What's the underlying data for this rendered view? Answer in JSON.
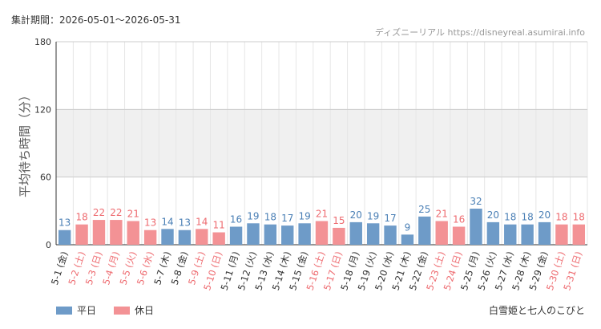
{
  "header": {
    "period_label": "集計期間：2026-05-01〜2026-05-31",
    "credit": "ディズニーリアル https://disneyreal.asumirai.info"
  },
  "footer": {
    "attraction_name": "白雪姫と七人のこびと"
  },
  "colors": {
    "weekday": "#6e9bc8",
    "holiday": "#f39295",
    "weekday_text": "#4a7fb5",
    "holiday_text": "#ee6b70",
    "band": "#f0f0f0",
    "grid": "#e6e6e6"
  },
  "chart_data": {
    "type": "bar",
    "ylabel": "平均待ち時間（分）",
    "ylim": [
      0,
      180
    ],
    "yticks": [
      "0",
      "60",
      "120",
      "180"
    ],
    "band": [
      60,
      120
    ],
    "grid": true,
    "legend_position": "bottom-left",
    "legend": [
      {
        "label": "平日",
        "key": "weekday"
      },
      {
        "label": "休日",
        "key": "holiday"
      }
    ],
    "categories": [
      "5-1 (金)",
      "5-2 (土)",
      "5-3 (日)",
      "5-4 (月)",
      "5-5 (火)",
      "5-6 (水)",
      "5-7 (木)",
      "5-8 (金)",
      "5-9 (土)",
      "5-10 (日)",
      "5-11 (月)",
      "5-12 (火)",
      "5-13 (水)",
      "5-14 (木)",
      "5-15 (金)",
      "5-16 (土)",
      "5-17 (日)",
      "5-18 (月)",
      "5-19 (火)",
      "5-20 (水)",
      "5-21 (木)",
      "5-22 (金)",
      "5-23 (土)",
      "5-24 (日)",
      "5-25 (月)",
      "5-26 (火)",
      "5-27 (水)",
      "5-28 (木)",
      "5-29 (金)",
      "5-30 (土)",
      "5-31 (日)"
    ],
    "values": [
      13,
      18,
      22,
      22,
      21,
      13,
      14,
      13,
      14,
      11,
      16,
      19,
      18,
      17,
      19,
      21,
      15,
      20,
      19,
      17,
      9,
      25,
      21,
      16,
      32,
      20,
      18,
      18,
      20,
      18,
      18
    ],
    "day_types": [
      "weekday",
      "holiday",
      "holiday",
      "holiday",
      "holiday",
      "holiday",
      "weekday",
      "weekday",
      "holiday",
      "holiday",
      "weekday",
      "weekday",
      "weekday",
      "weekday",
      "weekday",
      "holiday",
      "holiday",
      "weekday",
      "weekday",
      "weekday",
      "weekday",
      "weekday",
      "holiday",
      "holiday",
      "weekday",
      "weekday",
      "weekday",
      "weekday",
      "weekday",
      "holiday",
      "holiday"
    ]
  }
}
